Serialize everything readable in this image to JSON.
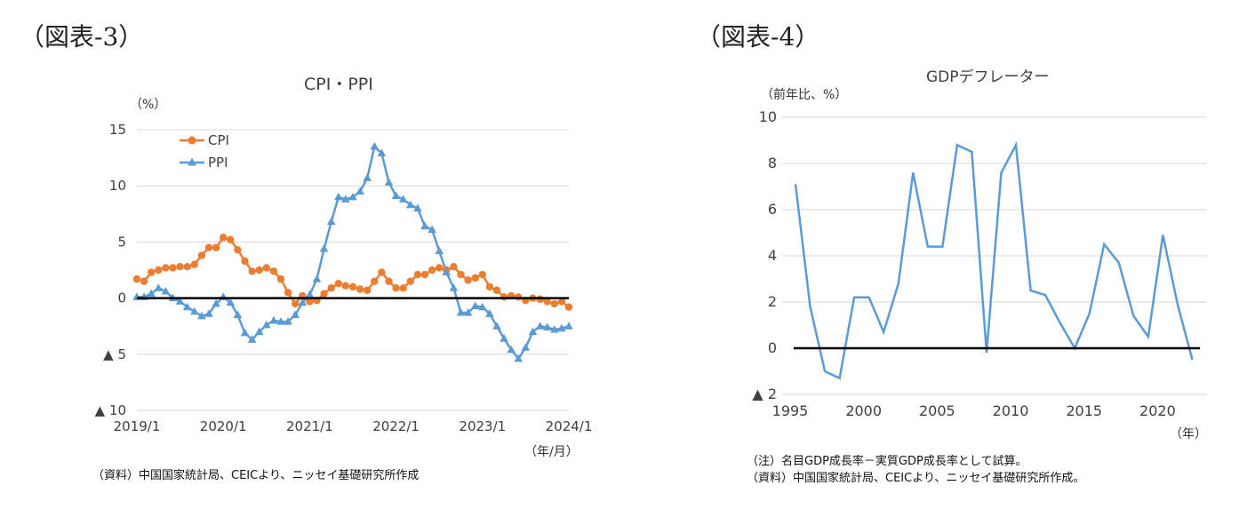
{
  "figures": {
    "left_label": "（図表-3）",
    "right_label": "（図表-4）"
  },
  "chart_data": [
    {
      "type": "line",
      "title": "CPI・PPI",
      "unit_label": "（%）",
      "xunit_label": "（年/月）",
      "x_tick_labels": [
        "2019/1",
        "2020/1",
        "2021/1",
        "2022/1",
        "2023/1",
        "2024/1"
      ],
      "y_ticks": [
        15,
        10,
        5,
        0,
        -5,
        -10
      ],
      "y_tick_labels": [
        "15",
        "10",
        "5",
        "0",
        "▲ 5",
        "▲ 10"
      ],
      "ylim": [
        -10,
        15
      ],
      "x_range": [
        "2019/1",
        "2024/2"
      ],
      "legend_position": "top-left",
      "series": [
        {
          "name": "CPI",
          "color": "#ED7D31",
          "marker": "circle",
          "values": [
            1.7,
            1.5,
            2.3,
            2.5,
            2.7,
            2.7,
            2.8,
            2.8,
            3.0,
            3.8,
            4.5,
            4.5,
            5.4,
            5.2,
            4.3,
            3.3,
            2.4,
            2.5,
            2.7,
            2.4,
            1.7,
            0.5,
            -0.5,
            0.2,
            -0.3,
            -0.2,
            0.4,
            0.9,
            1.3,
            1.1,
            1.0,
            0.8,
            0.7,
            1.5,
            2.3,
            1.5,
            0.9,
            0.9,
            1.5,
            2.1,
            2.1,
            2.5,
            2.7,
            2.5,
            2.8,
            2.1,
            1.6,
            1.8,
            2.1,
            1.0,
            0.7,
            0.1,
            0.2,
            0.1,
            -0.2,
            0.0,
            -0.1,
            -0.3,
            -0.5,
            -0.3,
            -0.8
          ]
        },
        {
          "name": "PPI",
          "color": "#5B9BD5",
          "marker": "triangle",
          "values": [
            0.1,
            0.1,
            0.4,
            0.9,
            0.6,
            0.0,
            -0.3,
            -0.8,
            -1.2,
            -1.6,
            -1.4,
            -0.5,
            0.1,
            -0.4,
            -1.5,
            -3.1,
            -3.7,
            -3.0,
            -2.4,
            -2.0,
            -2.1,
            -2.1,
            -1.5,
            -0.4,
            0.3,
            1.7,
            4.4,
            6.8,
            9.0,
            8.8,
            9.0,
            9.5,
            10.7,
            13.5,
            12.9,
            10.3,
            9.1,
            8.8,
            8.3,
            8.0,
            6.4,
            6.1,
            4.2,
            2.3,
            0.9,
            -1.3,
            -1.3,
            -0.7,
            -0.8,
            -1.4,
            -2.5,
            -3.6,
            -4.6,
            -5.4,
            -4.4,
            -3.0,
            -2.5,
            -2.6,
            -2.8,
            -2.7,
            -2.5
          ]
        }
      ]
    },
    {
      "type": "line",
      "title": "GDPデフレーター",
      "unit_label": "（前年比、%）",
      "xunit_label": "（年）",
      "x_ticks": [
        1995,
        2000,
        2005,
        2010,
        2015,
        2020
      ],
      "x_tick_labels": [
        "1995",
        "2000",
        "2005",
        "2010",
        "2015",
        "2020"
      ],
      "xlim": [
        1995,
        2023
      ],
      "y_ticks": [
        10,
        8,
        6,
        4,
        2,
        0,
        -2
      ],
      "y_tick_labels": [
        "10",
        "8",
        "6",
        "4",
        "2",
        "0",
        "▲ 2"
      ],
      "ylim": [
        -2,
        10
      ],
      "series": [
        {
          "name": "",
          "color": "#5B9BD5",
          "x": [
            1995,
            1996,
            1997,
            1998,
            1999,
            2000,
            2001,
            2002,
            2003,
            2004,
            2005,
            2006,
            2007,
            2008,
            2009,
            2010,
            2011,
            2012,
            2013,
            2014,
            2015,
            2016,
            2017,
            2018,
            2019,
            2020,
            2021,
            2022
          ],
          "values": [
            7.1,
            1.8,
            -1.0,
            -1.3,
            2.2,
            2.2,
            0.7,
            2.8,
            7.6,
            4.4,
            4.4,
            8.8,
            8.5,
            -0.2,
            7.6,
            8.8,
            2.5,
            2.3,
            1.1,
            0.0,
            1.5,
            4.5,
            3.7,
            1.4,
            0.5,
            4.9,
            1.9,
            -0.5
          ]
        }
      ]
    }
  ],
  "notes": {
    "left_source": "（資料）中国国家統計局、CEICより、ニッセイ基礎研究所作成",
    "right_note": "（注）名目GDP成長率－実質GDP成長率として試算。",
    "right_source": "（資料）中国国家統計局、CEICより、ニッセイ基礎研究所作成。"
  }
}
